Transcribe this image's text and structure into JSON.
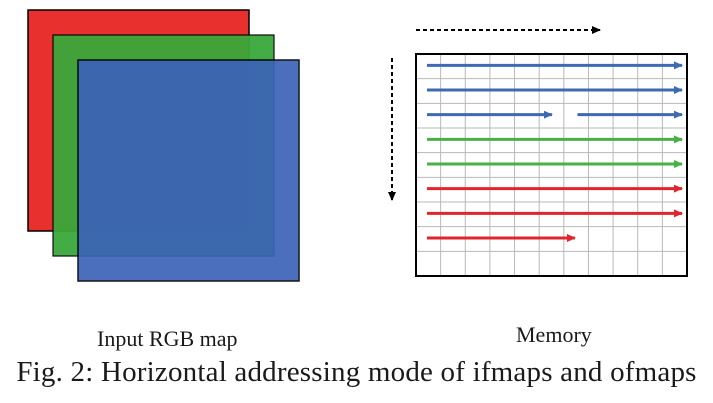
{
  "labels": {
    "left": "Input RGB map",
    "right": "Memory"
  },
  "caption": "Fig. 2: Horizontal addressing mode of ifmaps and ofmaps",
  "colors": {
    "red": "#e8312f",
    "green": "#3aa83a",
    "blue": "#3c63b8",
    "arrow_blue": "#3e6ab4",
    "arrow_green": "#47b047",
    "arrow_red": "#e0262c",
    "grid": "#b8b8b8",
    "border": "#000000"
  },
  "memory": {
    "columns": 11,
    "rows": 9,
    "arrow_rows": [
      {
        "color": "arrow_blue",
        "segments": [
          [
            0,
            1
          ]
        ]
      },
      {
        "color": "arrow_blue",
        "segments": [
          [
            0,
            1
          ]
        ]
      },
      {
        "color": "arrow_blue",
        "segments": [
          [
            0,
            0.49
          ],
          [
            0.59,
            1
          ]
        ]
      },
      {
        "color": "arrow_green",
        "segments": [
          [
            0,
            1
          ]
        ]
      },
      {
        "color": "arrow_green",
        "segments": [
          [
            0,
            1
          ]
        ]
      },
      {
        "color": "arrow_red",
        "segments": [
          [
            0,
            1
          ]
        ]
      },
      {
        "color": "arrow_red",
        "segments": [
          [
            0,
            1
          ]
        ]
      },
      {
        "color": "arrow_red",
        "segments": [
          [
            0,
            0.58
          ]
        ]
      }
    ]
  }
}
